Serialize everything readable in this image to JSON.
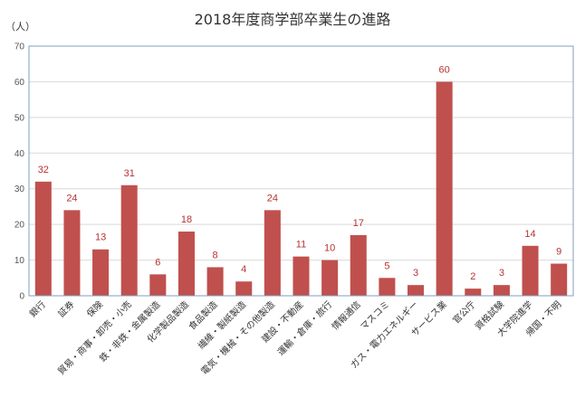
{
  "chart_data": {
    "type": "bar",
    "title": "2018年度商学部卒業生の進路",
    "ylabel": "（人）",
    "xlabel": "",
    "ylim": [
      0,
      70
    ],
    "yticks": [
      0,
      10,
      20,
      30,
      40,
      50,
      60,
      70
    ],
    "grid": true,
    "legend": "none",
    "bar_color": "#c0504d",
    "label_color": "#b83232",
    "categories": [
      "銀行",
      "証券",
      "保険",
      "貿易・商事・卸売・小売",
      "鉄・非鉄・金属製造",
      "化学製品製造",
      "食品製造",
      "繊維・製紙製造",
      "電気・機械・その他製造",
      "建設・不動産",
      "運輸・倉庫・旅行",
      "情報通信",
      "マスコミ",
      "ガス・電力エネルギー",
      "サービス業",
      "官公庁",
      "資格試験",
      "大学院進学",
      "帰国・不明"
    ],
    "values": [
      32,
      24,
      13,
      31,
      6,
      18,
      8,
      4,
      24,
      11,
      10,
      17,
      5,
      3,
      60,
      2,
      3,
      14,
      9
    ]
  }
}
